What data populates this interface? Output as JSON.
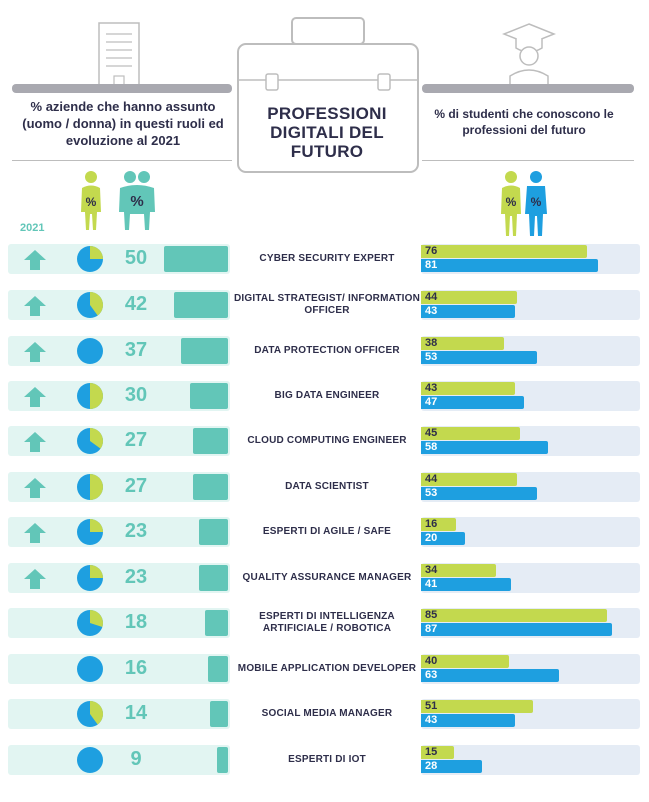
{
  "header": {
    "left_text": "% aziende che hanno assunto (uomo / donna) in questi ruoli ed evoluzione al 2021",
    "center_title": "PROFESSIONI DIGITALI DEL FUTURO",
    "right_text": "% di studenti che conoscono le professioni del futuro",
    "year_label": "2021",
    "icons": [
      "document-icon",
      "briefcase-icon",
      "graduate-icon",
      "woman-percent-icon",
      "couple-percent-icon",
      "woman-man-percent-icon"
    ],
    "percent_symbol": "%"
  },
  "colors": {
    "teal": "#62c6b8",
    "light_teal": "#e2f5f2",
    "lime": "#c3d94e",
    "blue": "#1e9fe0",
    "light_blue": "#e5ecf5",
    "dark_text": "#2e2e4a"
  },
  "chart_data": {
    "type": "bar",
    "categories": [
      "CYBER SECURITY EXPERT",
      "DIGITAL STRATEGIST/ INFORMATION OFFICER",
      "DATA PROTECTION OFFICER",
      "BIG DATA ENGINEER",
      "CLOUD COMPUTING ENGINEER",
      "DATA SCIENTIST",
      "ESPERTI DI AGILE / SAFE",
      "QUALITY ASSURANCE MANAGER",
      "ESPERTI DI INTELLIGENZA ARTIFICIALE / ROBOTICA",
      "MOBILE APPLICATION DEVELOPER",
      "SOCIAL MEDIA MANAGER",
      "ESPERTI DI IOT"
    ],
    "companies_hiring_pct": [
      50,
      42,
      37,
      30,
      27,
      27,
      23,
      23,
      18,
      16,
      14,
      9
    ],
    "growth_to_2021": [
      true,
      true,
      true,
      true,
      true,
      true,
      true,
      true,
      false,
      false,
      false,
      false
    ],
    "woman_share_pie": [
      0.25,
      0.4,
      0,
      0.5,
      0.35,
      0.5,
      0.25,
      0.25,
      0.3,
      0,
      0.4,
      0
    ],
    "students_awareness": [
      {
        "values": [
          76,
          44,
          38,
          43,
          45,
          44,
          16,
          34,
          85,
          40,
          51,
          15
        ]
      },
      {
        "values": [
          81,
          43,
          53,
          47,
          58,
          53,
          20,
          41,
          87,
          63,
          43,
          28
        ]
      }
    ],
    "xlim": [
      0,
      100
    ]
  }
}
